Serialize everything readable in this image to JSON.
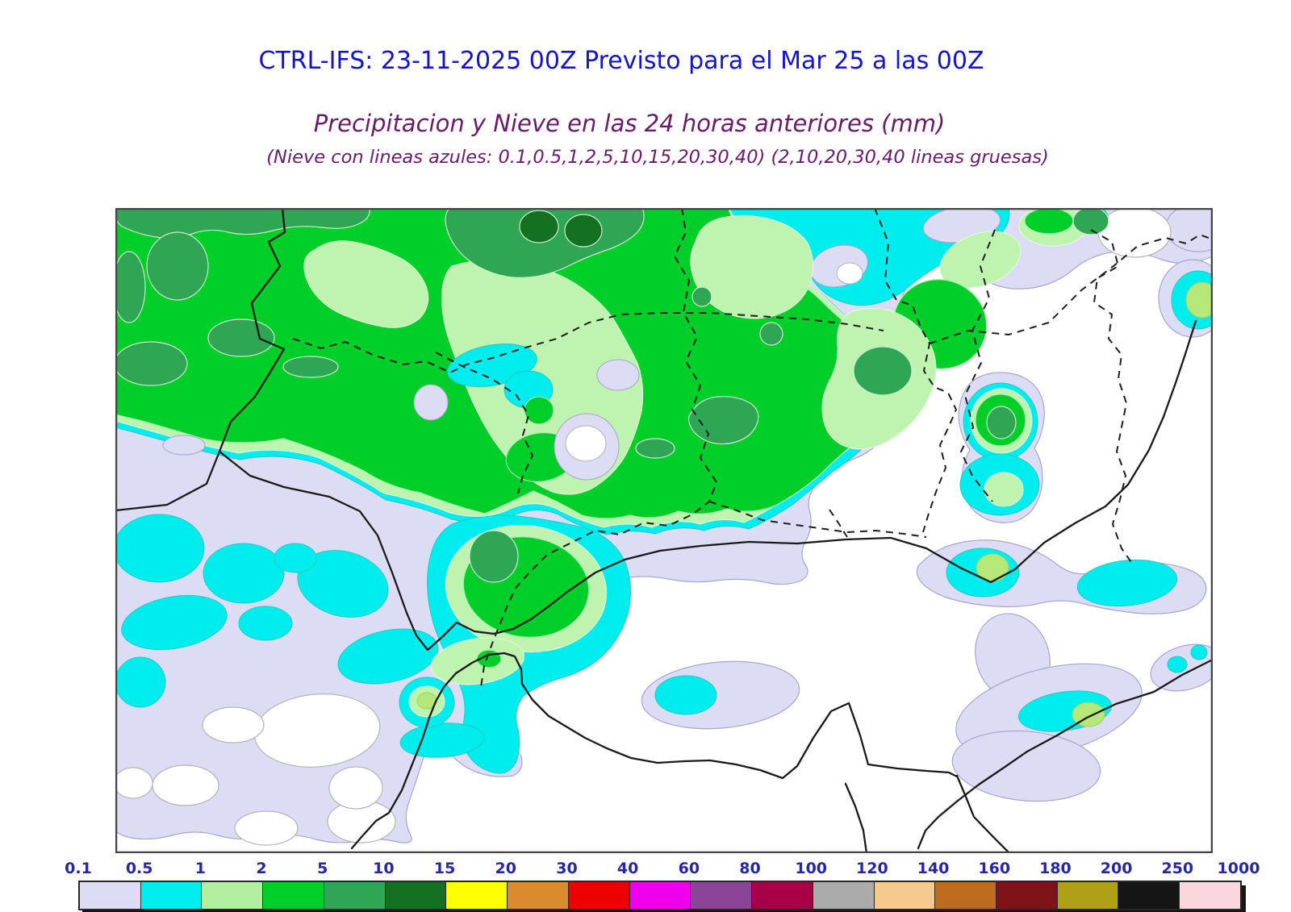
{
  "header": {
    "title": "CTRL-IFS: 23-11-2025 00Z Previsto para el Mar 25 a las 00Z",
    "subtitle": "Precipitacion y Nieve en las 24 horas anteriores (mm)",
    "subtitle_note": "(Nieve con lineas azules: 0.1,0.5,1,2,5,10,15,20,30,40)  (2,10,20,30,40 lineas gruesas)"
  },
  "colors": {
    "title_blue": "#1414cc",
    "subtitle_purple": "#6b1a6b",
    "label_navy": "#2626aa"
  },
  "scale": {
    "unit": "mm",
    "labels": [
      "0.1",
      "0.5",
      "1",
      "2",
      "5",
      "10",
      "15",
      "20",
      "30",
      "40",
      "60",
      "80",
      "100",
      "120",
      "140",
      "160",
      "180",
      "200",
      "250",
      "1000"
    ],
    "segment_colors": [
      "#dcdcf4",
      "#00eded",
      "#b2efa0",
      "#00ce29",
      "#2fa653",
      "#127221",
      "#ffff00",
      "#dc8a2e",
      "#ee0000",
      "#ee00ee",
      "#8a4498",
      "#a80048",
      "#ababab",
      "#f6c98e",
      "#be6b1f",
      "#7e1216",
      "#afa018",
      "#151515",
      "#fad7de"
    ]
  },
  "map": {
    "snow_contour_levels": "0.1,0.5,1,2,5,10,15,20,30,40",
    "thick_contour_levels": "2,10,20,30,40"
  }
}
